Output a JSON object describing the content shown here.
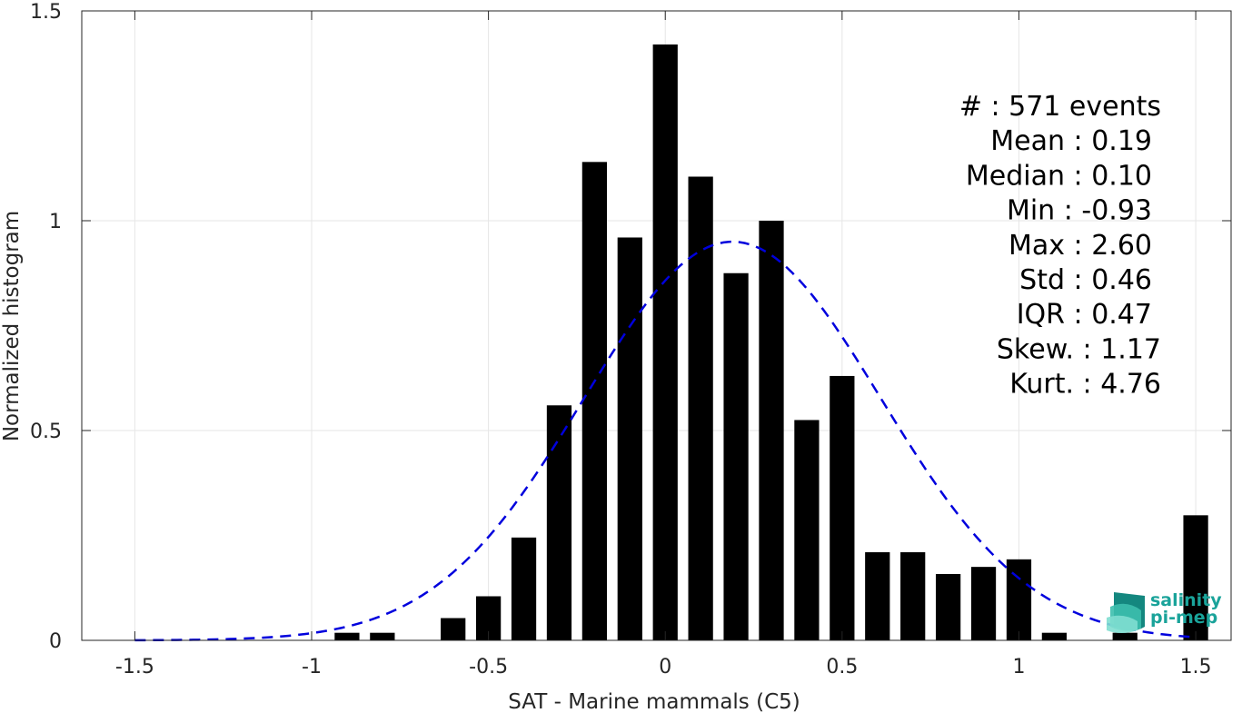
{
  "chart_data": {
    "type": "bar",
    "xlabel": "SAT - Marine mammals (C5)",
    "ylabel": "Normalized histogram",
    "xlim": [
      -1.65,
      1.6
    ],
    "ylim": [
      0,
      1.5
    ],
    "xticks": [
      -1.5,
      -1,
      -0.5,
      0,
      0.5,
      1,
      1.5
    ],
    "xtick_labels": [
      "-1.5",
      "-1",
      "-0.5",
      "0",
      "0.5",
      "1",
      "1.5"
    ],
    "yticks": [
      0,
      0.5,
      1,
      1.5
    ],
    "ytick_labels": [
      "0",
      "0.5",
      "1",
      "1.5"
    ],
    "grid": true,
    "bar_width": 0.07,
    "bar_color": "#000000",
    "bins": [
      {
        "x": -0.9,
        "y": 0.018
      },
      {
        "x": -0.8,
        "y": 0.018
      },
      {
        "x": -0.6,
        "y": 0.053
      },
      {
        "x": -0.5,
        "y": 0.105
      },
      {
        "x": -0.4,
        "y": 0.245
      },
      {
        "x": -0.3,
        "y": 0.56
      },
      {
        "x": -0.2,
        "y": 1.14
      },
      {
        "x": -0.1,
        "y": 0.96
      },
      {
        "x": 0.0,
        "y": 1.42
      },
      {
        "x": 0.1,
        "y": 1.105
      },
      {
        "x": 0.2,
        "y": 0.875
      },
      {
        "x": 0.3,
        "y": 1.0
      },
      {
        "x": 0.4,
        "y": 0.525
      },
      {
        "x": 0.5,
        "y": 0.63
      },
      {
        "x": 0.6,
        "y": 0.21
      },
      {
        "x": 0.7,
        "y": 0.21
      },
      {
        "x": 0.8,
        "y": 0.158
      },
      {
        "x": 0.9,
        "y": 0.175
      },
      {
        "x": 1.0,
        "y": 0.193
      },
      {
        "x": 1.1,
        "y": 0.018
      },
      {
        "x": 1.3,
        "y": 0.018
      },
      {
        "x": 1.5,
        "y": 0.298
      }
    ],
    "fit_curve": {
      "type": "normal",
      "mean": 0.19,
      "std": 0.42,
      "peak": 0.95,
      "x_range": [
        -1.5,
        1.5
      ],
      "color": "#0000dd",
      "style": "dashed"
    },
    "stats_lines": [
      "#  : 571 events",
      "Mean : 0.19",
      "Median : 0.10",
      "Min : -0.93",
      "Max : 2.60",
      "Std : 0.46",
      "IQR : 0.47",
      "Skew. : 1.17",
      "Kurt. : 4.76"
    ],
    "stats_position": "top-right"
  },
  "logo": {
    "line1": "salinity",
    "line2": "pi-mep",
    "color": "#1aa39a"
  }
}
